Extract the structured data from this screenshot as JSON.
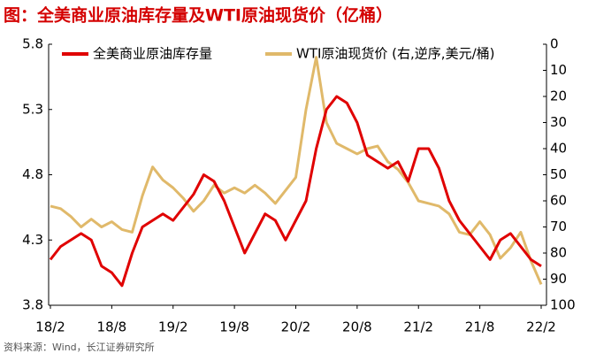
{
  "chart_data": {
    "type": "line",
    "title": "图：全美商业原油库存量及WTI原油现货价（亿桶）",
    "source": "资料来源：Wind，长江证券研究所",
    "categories": [
      "18/2",
      null,
      null,
      null,
      null,
      null,
      "18/8",
      null,
      null,
      null,
      null,
      null,
      "19/2",
      null,
      null,
      null,
      null,
      null,
      "19/8",
      null,
      null,
      null,
      null,
      null,
      "20/2",
      null,
      null,
      null,
      null,
      null,
      "20/8",
      null,
      null,
      null,
      null,
      null,
      "21/2",
      null,
      null,
      null,
      null,
      null,
      "21/8",
      null,
      null,
      null,
      null,
      null,
      "22/2"
    ],
    "series": [
      {
        "name": "全美商业原油库存量",
        "color": "#e00000",
        "values": [
          4.15,
          4.25,
          4.3,
          4.35,
          4.3,
          4.1,
          4.05,
          3.95,
          4.2,
          4.4,
          4.45,
          4.5,
          4.45,
          4.55,
          4.65,
          4.8,
          4.75,
          4.6,
          4.4,
          4.2,
          4.35,
          4.5,
          4.45,
          4.3,
          4.45,
          4.6,
          5.0,
          5.3,
          5.4,
          5.35,
          5.2,
          4.95,
          4.9,
          4.85,
          4.9,
          4.75,
          5.0,
          5.0,
          4.85,
          4.6,
          4.45,
          4.35,
          4.25,
          4.15,
          4.3,
          4.35,
          4.25,
          4.15,
          4.1
        ]
      },
      {
        "name": "WTI原油现货价 (右,逆序,美元/桶)",
        "color": "#e0b96a",
        "axis": "y2",
        "values": [
          62,
          63,
          66,
          70,
          67,
          70,
          68,
          71,
          72,
          58,
          47,
          52,
          55,
          59,
          64,
          60,
          54,
          57,
          55,
          57,
          54,
          57,
          61,
          56,
          51,
          25,
          5,
          30,
          38,
          40,
          42,
          40,
          39,
          45,
          48,
          53,
          60,
          61,
          62,
          65,
          72,
          73,
          68,
          73,
          82,
          78,
          72,
          83,
          92
        ]
      }
    ],
    "ylim": [
      3.8,
      5.8
    ],
    "yticks": [
      3.8,
      4.3,
      4.8,
      5.3,
      5.8
    ],
    "y2lim": [
      0,
      100
    ],
    "y2ticks": [
      0,
      10,
      20,
      30,
      40,
      50,
      60,
      70,
      80,
      90,
      100
    ],
    "y2reversed": true,
    "legend": "top"
  }
}
